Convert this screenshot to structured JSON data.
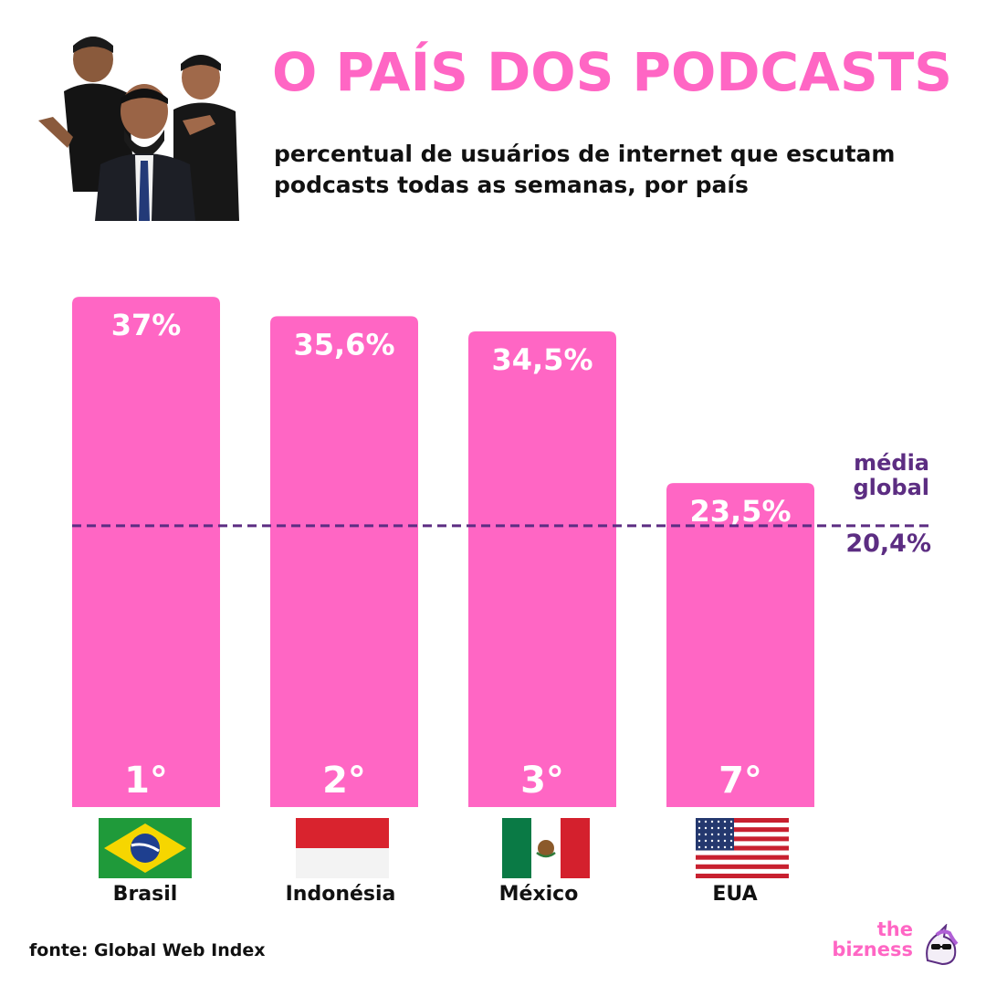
{
  "header": {
    "title": "O PAÍS DOS PODCASTS",
    "subtitle": "percentual de usuários de internet que escutam podcasts todas as semanas, por país"
  },
  "colors": {
    "bar": "#ff66c4",
    "title": "#ff66c4",
    "accent": "#5c2d82",
    "text": "#111111"
  },
  "chart_data": {
    "type": "bar",
    "categories": [
      "Brasil",
      "Indonésia",
      "México",
      "EUA"
    ],
    "values": [
      37,
      35.6,
      34.5,
      23.5
    ],
    "value_labels": [
      "37%",
      "35,6%",
      "34,5%",
      "23,5%"
    ],
    "ranks": [
      "1°",
      "2°",
      "3°",
      "7°"
    ],
    "ylim": [
      0,
      38.8
    ],
    "reference_line": {
      "value": 20.4,
      "label": "média\nglobal",
      "value_label": "20,4%",
      "style": "dashed"
    },
    "grid": false,
    "legend": "none"
  },
  "flags": [
    "brazil-flag-icon",
    "indonesia-flag-icon",
    "mexico-flag-icon",
    "usa-flag-icon"
  ],
  "footer": {
    "source": "fonte: Global Web Index",
    "brand_top": "the",
    "brand_bottom": "bizness",
    "brand_icon": "unicorn-sunglasses-icon"
  }
}
